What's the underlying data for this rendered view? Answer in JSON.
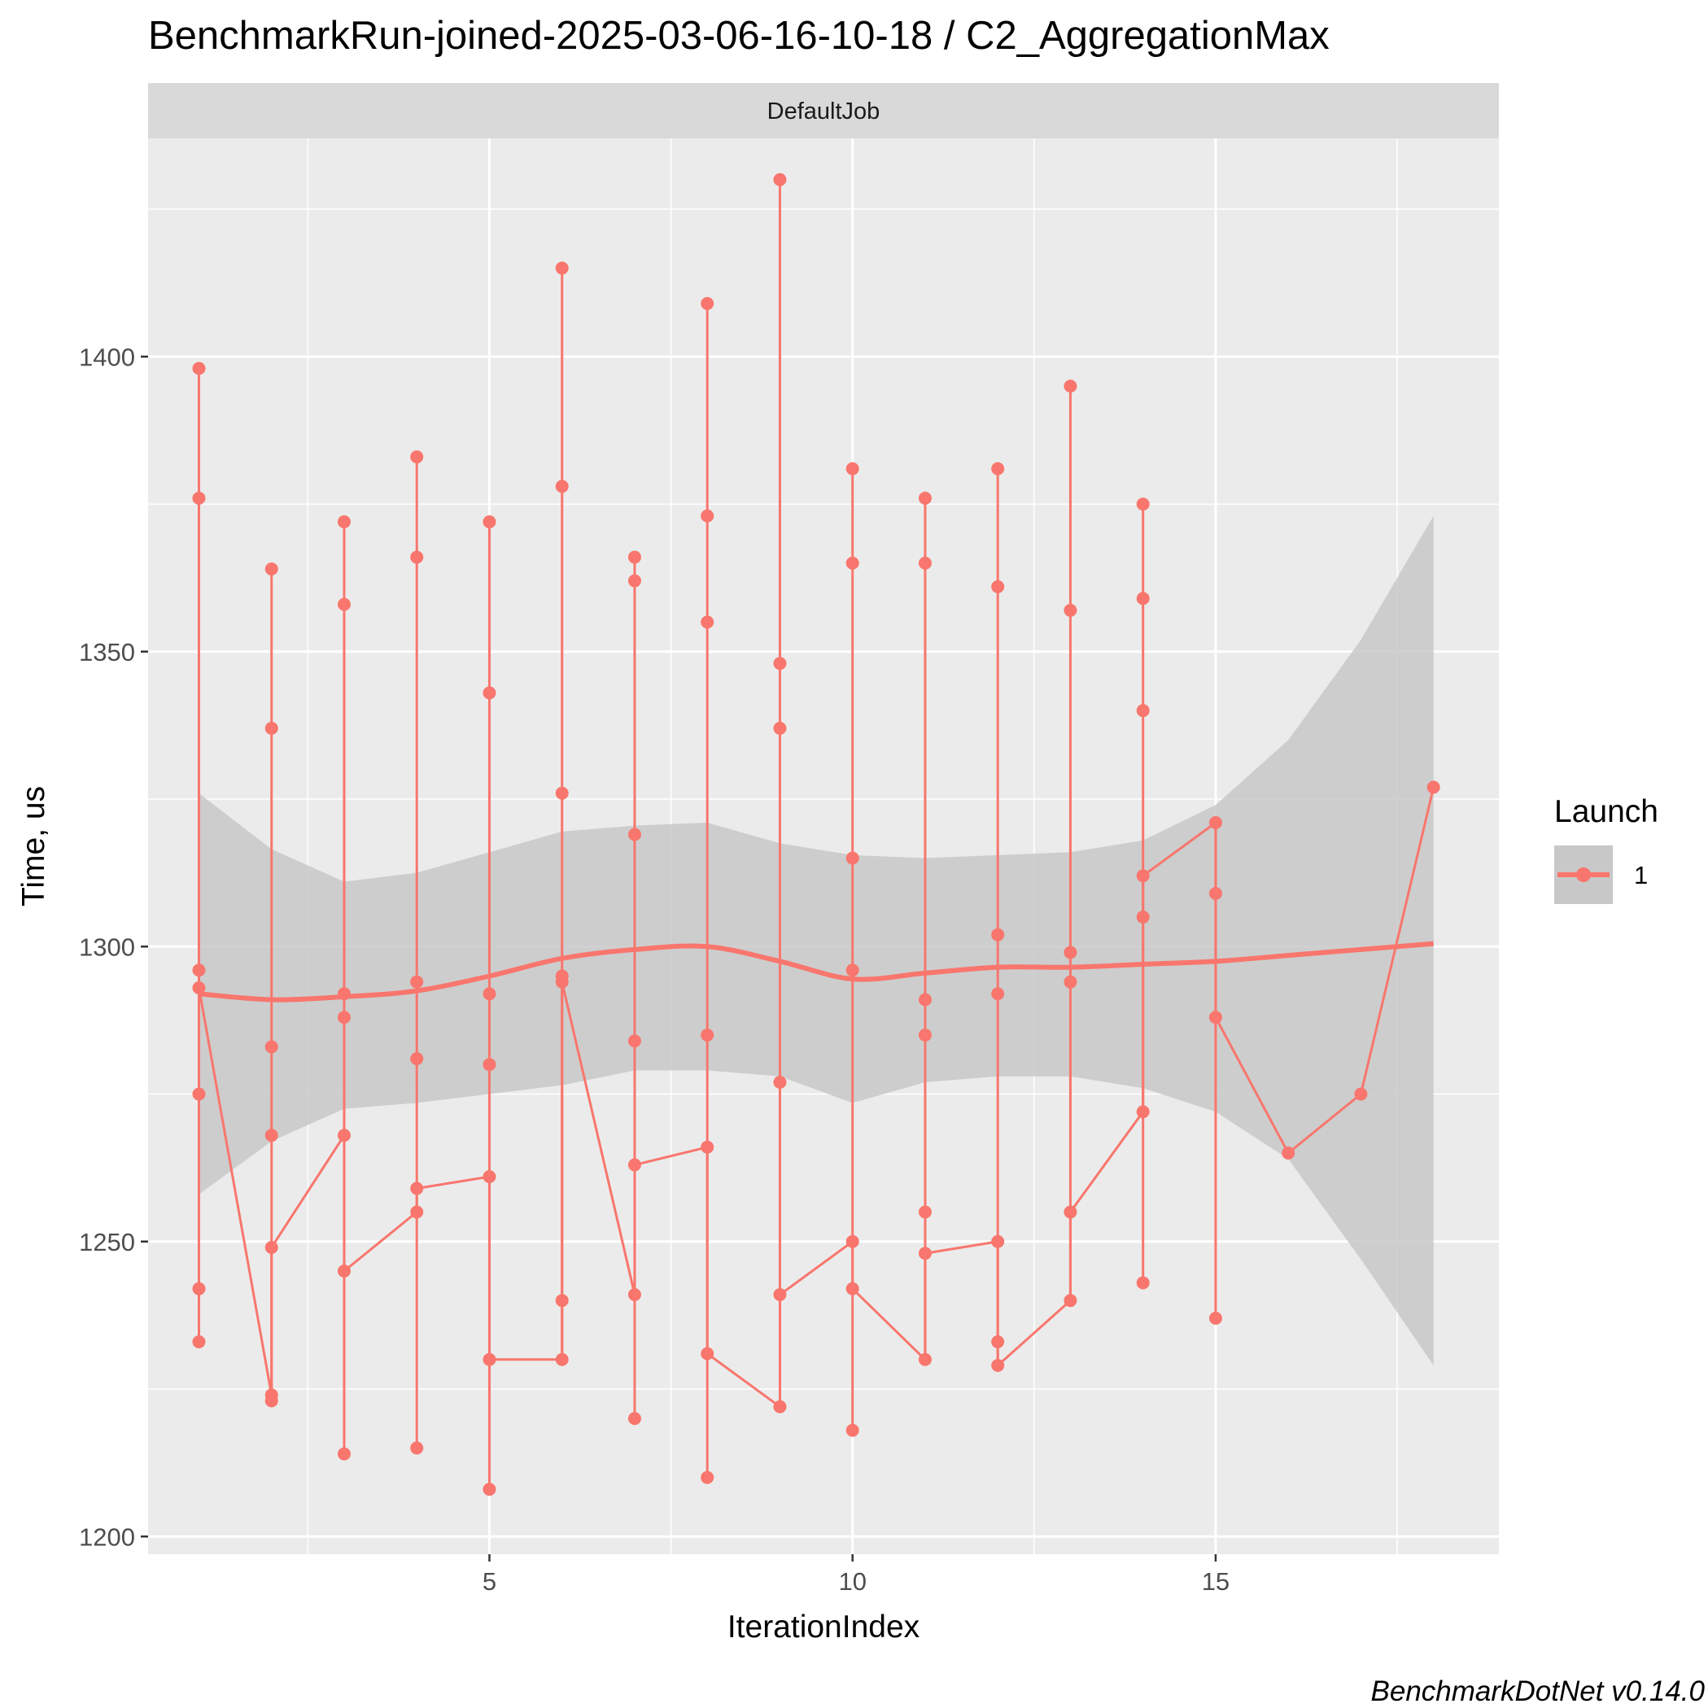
{
  "chart_data": {
    "type": "line",
    "title": "BenchmarkRun-joined-2025-03-06-16-10-18 / C2_AggregationMax",
    "facet": "DefaultJob",
    "xlabel": "IterationIndex",
    "ylabel": "Time, us",
    "caption": "BenchmarkDotNet v0.14.0",
    "xlim": [
      0.3,
      18.9
    ],
    "ylim": [
      1197,
      1437
    ],
    "x_ticks": [
      5,
      10,
      15
    ],
    "x_tick_labels": [
      "5",
      "10",
      "15"
    ],
    "y_ticks": [
      1200,
      1250,
      1300,
      1350,
      1400
    ],
    "y_tick_labels": [
      "1200",
      "1250",
      "1300",
      "1350",
      "1400"
    ],
    "grid": true,
    "legend": {
      "title": "Launch",
      "entries": [
        "1"
      ],
      "position": "right"
    },
    "colors": {
      "series": "#f8766d",
      "ribbon": "#c8c8c8",
      "panel": "#ebebeb",
      "strip": "#d9d9d9",
      "grid": "#ffffff"
    },
    "series": [
      {
        "name": "1",
        "iterations": [
          {
            "x": 1,
            "values": [
              1398,
              1376,
              1296,
              1293,
              1275,
              1242,
              1233
            ]
          },
          {
            "x": 2,
            "values": [
              1364,
              1337,
              1283,
              1268,
              1249,
              1224,
              1223
            ]
          },
          {
            "x": 3,
            "values": [
              1372,
              1358,
              1292,
              1288,
              1268,
              1245,
              1214
            ]
          },
          {
            "x": 4,
            "values": [
              1383,
              1366,
              1294,
              1281,
              1259,
              1255,
              1215
            ]
          },
          {
            "x": 5,
            "values": [
              1372,
              1343,
              1292,
              1280,
              1261,
              1230,
              1208
            ]
          },
          {
            "x": 6,
            "values": [
              1415,
              1378,
              1326,
              1295,
              1294,
              1240,
              1230
            ]
          },
          {
            "x": 7,
            "values": [
              1366,
              1362,
              1319,
              1284,
              1263,
              1241,
              1220
            ]
          },
          {
            "x": 8,
            "values": [
              1409,
              1373,
              1355,
              1285,
              1266,
              1231,
              1210
            ]
          },
          {
            "x": 9,
            "values": [
              1430,
              1348,
              1337,
              1277,
              1241,
              1222
            ]
          },
          {
            "x": 10,
            "values": [
              1381,
              1365,
              1315,
              1296,
              1250,
              1242,
              1218
            ]
          },
          {
            "x": 11,
            "values": [
              1376,
              1365,
              1291,
              1285,
              1255,
              1248,
              1230
            ]
          },
          {
            "x": 12,
            "values": [
              1381,
              1361,
              1302,
              1292,
              1250,
              1233,
              1229
            ]
          },
          {
            "x": 13,
            "values": [
              1395,
              1357,
              1299,
              1294,
              1255,
              1240
            ]
          },
          {
            "x": 14,
            "values": [
              1375,
              1359,
              1340,
              1312,
              1305,
              1272,
              1243
            ]
          },
          {
            "x": 15,
            "values": [
              1321,
              1309,
              1288,
              1237
            ]
          },
          {
            "x": 16,
            "values": [
              1265
            ]
          },
          {
            "x": 17,
            "values": [
              1275
            ]
          },
          {
            "x": 18,
            "values": [
              1327
            ]
          }
        ],
        "launch_path": [
          [
            1,
            1293
          ],
          [
            2,
            1224
          ],
          [
            2,
            1249
          ],
          [
            3,
            1268
          ],
          [
            3,
            1245
          ],
          [
            4,
            1255
          ],
          [
            4,
            1259
          ],
          [
            5,
            1261
          ],
          [
            5,
            1230
          ],
          [
            6,
            1230
          ],
          [
            6,
            1294
          ],
          [
            7,
            1241
          ],
          [
            7,
            1263
          ],
          [
            8,
            1266
          ],
          [
            8,
            1231
          ],
          [
            9,
            1222
          ],
          [
            9,
            1241
          ],
          [
            10,
            1250
          ],
          [
            10,
            1242
          ],
          [
            11,
            1230
          ],
          [
            11,
            1248
          ],
          [
            12,
            1250
          ],
          [
            12,
            1229
          ],
          [
            13,
            1240
          ],
          [
            13,
            1255
          ],
          [
            14,
            1272
          ],
          [
            14,
            1312
          ],
          [
            15,
            1321
          ],
          [
            15,
            1288
          ],
          [
            16,
            1265
          ],
          [
            17,
            1275
          ],
          [
            18,
            1327
          ]
        ],
        "smooth": {
          "x": [
            1,
            2,
            3,
            4,
            5,
            6,
            7,
            8,
            9,
            10,
            11,
            12,
            13,
            14,
            15,
            16,
            17,
            18
          ],
          "fit": [
            1292,
            1291,
            1291.5,
            1292.5,
            1295,
            1298,
            1299.5,
            1300,
            1297.5,
            1294.5,
            1295.5,
            1296.5,
            1296.5,
            1297,
            1297.5,
            1298.5,
            1299.5,
            1300.5
          ],
          "lower": [
            1258,
            1267,
            1272.5,
            1273.5,
            1275,
            1276.5,
            1279,
            1279,
            1278,
            1273.5,
            1277,
            1278,
            1278,
            1276,
            1272,
            1264,
            1247,
            1229
          ],
          "upper": [
            1326,
            1316.5,
            1311,
            1312.5,
            1316,
            1319.5,
            1320.5,
            1321,
            1317.5,
            1315.5,
            1315,
            1315.5,
            1316,
            1318,
            1324,
            1335,
            1352,
            1373
          ]
        }
      }
    ]
  }
}
